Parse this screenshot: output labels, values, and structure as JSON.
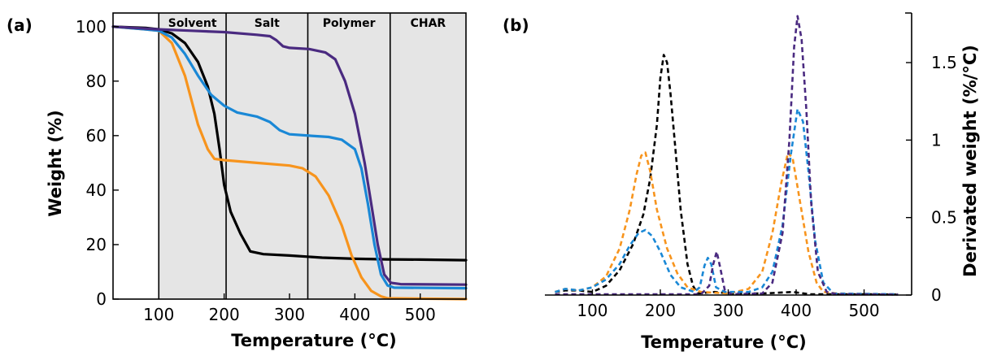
{
  "chart_data": [
    {
      "panel": "(a)",
      "type": "line",
      "xlabel": "Temperature (°C)",
      "ylabel": "Weight (%)",
      "xlim": [
        30,
        570
      ],
      "ylim": [
        0,
        105
      ],
      "xticks": [
        100,
        200,
        300,
        400,
        500
      ],
      "yticks": [
        0,
        20,
        40,
        60,
        80,
        100
      ],
      "regions": [
        {
          "label": "Solvent",
          "from": 100,
          "to": 203
        },
        {
          "label": "Salt",
          "from": 203,
          "to": 328
        },
        {
          "label": "Polymer",
          "from": 328,
          "to": 454
        },
        {
          "label": "CHAR",
          "from": 454,
          "to": 570
        }
      ],
      "series": [
        {
          "color": "#000000",
          "points": [
            [
              30,
              100
            ],
            [
              80,
              99.5
            ],
            [
              100,
              99
            ],
            [
              120,
              97.5
            ],
            [
              140,
              94
            ],
            [
              160,
              87
            ],
            [
              175,
              78
            ],
            [
              185,
              68
            ],
            [
              193,
              55
            ],
            [
              200,
              42
            ],
            [
              210,
              32
            ],
            [
              225,
              24
            ],
            [
              240,
              17.5
            ],
            [
              260,
              16.5
            ],
            [
              300,
              16
            ],
            [
              350,
              15.2
            ],
            [
              400,
              14.8
            ],
            [
              450,
              14.6
            ],
            [
              500,
              14.5
            ],
            [
              570,
              14.3
            ]
          ]
        },
        {
          "color": "#f7941d",
          "points": [
            [
              30,
              100
            ],
            [
              80,
              99
            ],
            [
              100,
              98.5
            ],
            [
              120,
              94
            ],
            [
              140,
              82
            ],
            [
              160,
              64
            ],
            [
              175,
              55
            ],
            [
              185,
              51.5
            ],
            [
              200,
              51
            ],
            [
              250,
              50
            ],
            [
              300,
              49
            ],
            [
              320,
              48
            ],
            [
              340,
              45
            ],
            [
              360,
              38
            ],
            [
              380,
              27
            ],
            [
              395,
              16
            ],
            [
              410,
              8
            ],
            [
              425,
              3
            ],
            [
              440,
              1
            ],
            [
              450,
              0.3
            ],
            [
              570,
              0
            ]
          ]
        },
        {
          "color": "#1a88d6",
          "points": [
            [
              30,
              100
            ],
            [
              80,
              99
            ],
            [
              100,
              98.5
            ],
            [
              120,
              96
            ],
            [
              140,
              90
            ],
            [
              160,
              82
            ],
            [
              180,
              75
            ],
            [
              200,
              71
            ],
            [
              220,
              68.5
            ],
            [
              250,
              67
            ],
            [
              270,
              65
            ],
            [
              285,
              62
            ],
            [
              300,
              60.5
            ],
            [
              330,
              60
            ],
            [
              360,
              59.5
            ],
            [
              380,
              58.5
            ],
            [
              400,
              55
            ],
            [
              410,
              48
            ],
            [
              420,
              35
            ],
            [
              430,
              20
            ],
            [
              440,
              9
            ],
            [
              450,
              5
            ],
            [
              460,
              4.2
            ],
            [
              570,
              4
            ]
          ]
        },
        {
          "color": "#4a2a80",
          "points": [
            [
              30,
              100
            ],
            [
              100,
              99
            ],
            [
              150,
              98.5
            ],
            [
              200,
              98
            ],
            [
              250,
              97
            ],
            [
              270,
              96.5
            ],
            [
              280,
              95
            ],
            [
              290,
              92.8
            ],
            [
              300,
              92.2
            ],
            [
              330,
              91.8
            ],
            [
              355,
              90.5
            ],
            [
              370,
              88
            ],
            [
              385,
              80
            ],
            [
              400,
              68
            ],
            [
              415,
              50
            ],
            [
              425,
              35
            ],
            [
              435,
              20
            ],
            [
              445,
              9
            ],
            [
              455,
              6
            ],
            [
              470,
              5.5
            ],
            [
              570,
              5.3
            ]
          ]
        }
      ]
    },
    {
      "panel": "(b)",
      "type": "line",
      "xlabel": "Temperature (°C)",
      "ylabel": "Derivated weight (%/°C)",
      "xlim": [
        30,
        570
      ],
      "ylim": [
        0,
        1.82
      ],
      "xticks": [
        100,
        200,
        300,
        400,
        500
      ],
      "yticks": [
        0,
        0.5,
        1,
        1.5
      ],
      "ytick_labels": [
        "0",
        "0.5",
        "1",
        "1.5"
      ],
      "series": [
        {
          "color": "#000000",
          "points": [
            [
              45,
              0.02
            ],
            [
              60,
              0.03
            ],
            [
              80,
              0.03
            ],
            [
              100,
              0.02
            ],
            [
              120,
              0.06
            ],
            [
              140,
              0.16
            ],
            [
              160,
              0.33
            ],
            [
              175,
              0.52
            ],
            [
              185,
              0.75
            ],
            [
              195,
              1.1
            ],
            [
              200,
              1.4
            ],
            [
              205,
              1.55
            ],
            [
              210,
              1.5
            ],
            [
              215,
              1.3
            ],
            [
              222,
              0.95
            ],
            [
              230,
              0.55
            ],
            [
              240,
              0.2
            ],
            [
              248,
              0.06
            ],
            [
              255,
              0.01
            ],
            [
              280,
              0.02
            ],
            [
              300,
              0.01
            ],
            [
              350,
              0.01
            ],
            [
              375,
              0.015
            ],
            [
              395,
              0.02
            ],
            [
              420,
              0.005
            ],
            [
              450,
              0.005
            ],
            [
              500,
              0.005
            ],
            [
              550,
              0.003
            ]
          ]
        },
        {
          "color": "#f7941d",
          "points": [
            [
              45,
              0.02
            ],
            [
              60,
              0.04
            ],
            [
              80,
              0.03
            ],
            [
              100,
              0.05
            ],
            [
              120,
              0.12
            ],
            [
              140,
              0.3
            ],
            [
              155,
              0.55
            ],
            [
              165,
              0.78
            ],
            [
              172,
              0.9
            ],
            [
              178,
              0.92
            ],
            [
              185,
              0.8
            ],
            [
              195,
              0.55
            ],
            [
              210,
              0.3
            ],
            [
              225,
              0.14
            ],
            [
              240,
              0.05
            ],
            [
              260,
              0.02
            ],
            [
              300,
              0.01
            ],
            [
              330,
              0.04
            ],
            [
              350,
              0.15
            ],
            [
              365,
              0.4
            ],
            [
              378,
              0.72
            ],
            [
              388,
              0.92
            ],
            [
              395,
              0.88
            ],
            [
              405,
              0.62
            ],
            [
              418,
              0.28
            ],
            [
              430,
              0.08
            ],
            [
              440,
              0.02
            ],
            [
              460,
              0.01
            ],
            [
              550,
              0.005
            ]
          ]
        },
        {
          "color": "#1a88d6",
          "points": [
            [
              45,
              0.02
            ],
            [
              60,
              0.04
            ],
            [
              80,
              0.03
            ],
            [
              100,
              0.05
            ],
            [
              120,
              0.1
            ],
            [
              140,
              0.2
            ],
            [
              155,
              0.32
            ],
            [
              168,
              0.4
            ],
            [
              178,
              0.42
            ],
            [
              188,
              0.38
            ],
            [
              200,
              0.28
            ],
            [
              215,
              0.13
            ],
            [
              230,
              0.05
            ],
            [
              250,
              0.02
            ],
            [
              258,
              0.05
            ],
            [
              265,
              0.19
            ],
            [
              270,
              0.24
            ],
            [
              275,
              0.2
            ],
            [
              282,
              0.05
            ],
            [
              295,
              0.02
            ],
            [
              330,
              0.02
            ],
            [
              350,
              0.05
            ],
            [
              365,
              0.15
            ],
            [
              380,
              0.45
            ],
            [
              392,
              0.9
            ],
            [
              402,
              1.2
            ],
            [
              410,
              1.12
            ],
            [
              418,
              0.8
            ],
            [
              428,
              0.35
            ],
            [
              440,
              0.08
            ],
            [
              455,
              0.01
            ],
            [
              550,
              0.005
            ]
          ]
        },
        {
          "color": "#4a2a80",
          "points": [
            [
              45,
              0.005
            ],
            [
              200,
              0.005
            ],
            [
              260,
              0.005
            ],
            [
              272,
              0.06
            ],
            [
              278,
              0.2
            ],
            [
              283,
              0.28
            ],
            [
              288,
              0.18
            ],
            [
              295,
              0.03
            ],
            [
              305,
              0.005
            ],
            [
              350,
              0.01
            ],
            [
              365,
              0.08
            ],
            [
              380,
              0.4
            ],
            [
              390,
              1.0
            ],
            [
              397,
              1.6
            ],
            [
              402,
              1.8
            ],
            [
              408,
              1.65
            ],
            [
              415,
              1.2
            ],
            [
              422,
              0.6
            ],
            [
              432,
              0.15
            ],
            [
              445,
              0.02
            ],
            [
              460,
              0.005
            ],
            [
              550,
              0.003
            ]
          ]
        }
      ]
    }
  ]
}
